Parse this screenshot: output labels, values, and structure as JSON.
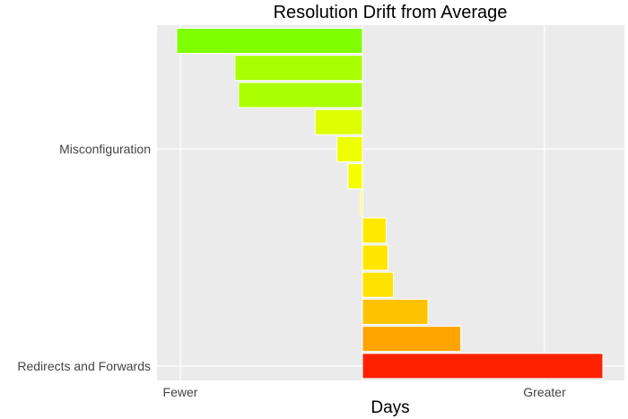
{
  "chart_data": {
    "type": "bar",
    "orientation": "horizontal",
    "title": "Resolution Drift from Average",
    "xlabel": "Days",
    "ylabel": "",
    "x_tick_labels": [
      "Fewer",
      "Greater"
    ],
    "y_tick_labels": [
      "Misconfiguration",
      "Redirects and Forwards"
    ],
    "xlim": [
      -1.05,
      1.45
    ],
    "grid": true,
    "legend": "none",
    "colors": {
      "panel": "#ebebeb",
      "grid": "#ffffff",
      "scale_low": "#7fff00",
      "scale_mid": "#ffff00",
      "scale_high": "#ff2000"
    },
    "values": [
      -1.02,
      -0.7,
      -0.68,
      -0.26,
      -0.14,
      -0.08,
      -0.01,
      0.13,
      0.14,
      0.17,
      0.36,
      0.54,
      1.32
    ]
  }
}
